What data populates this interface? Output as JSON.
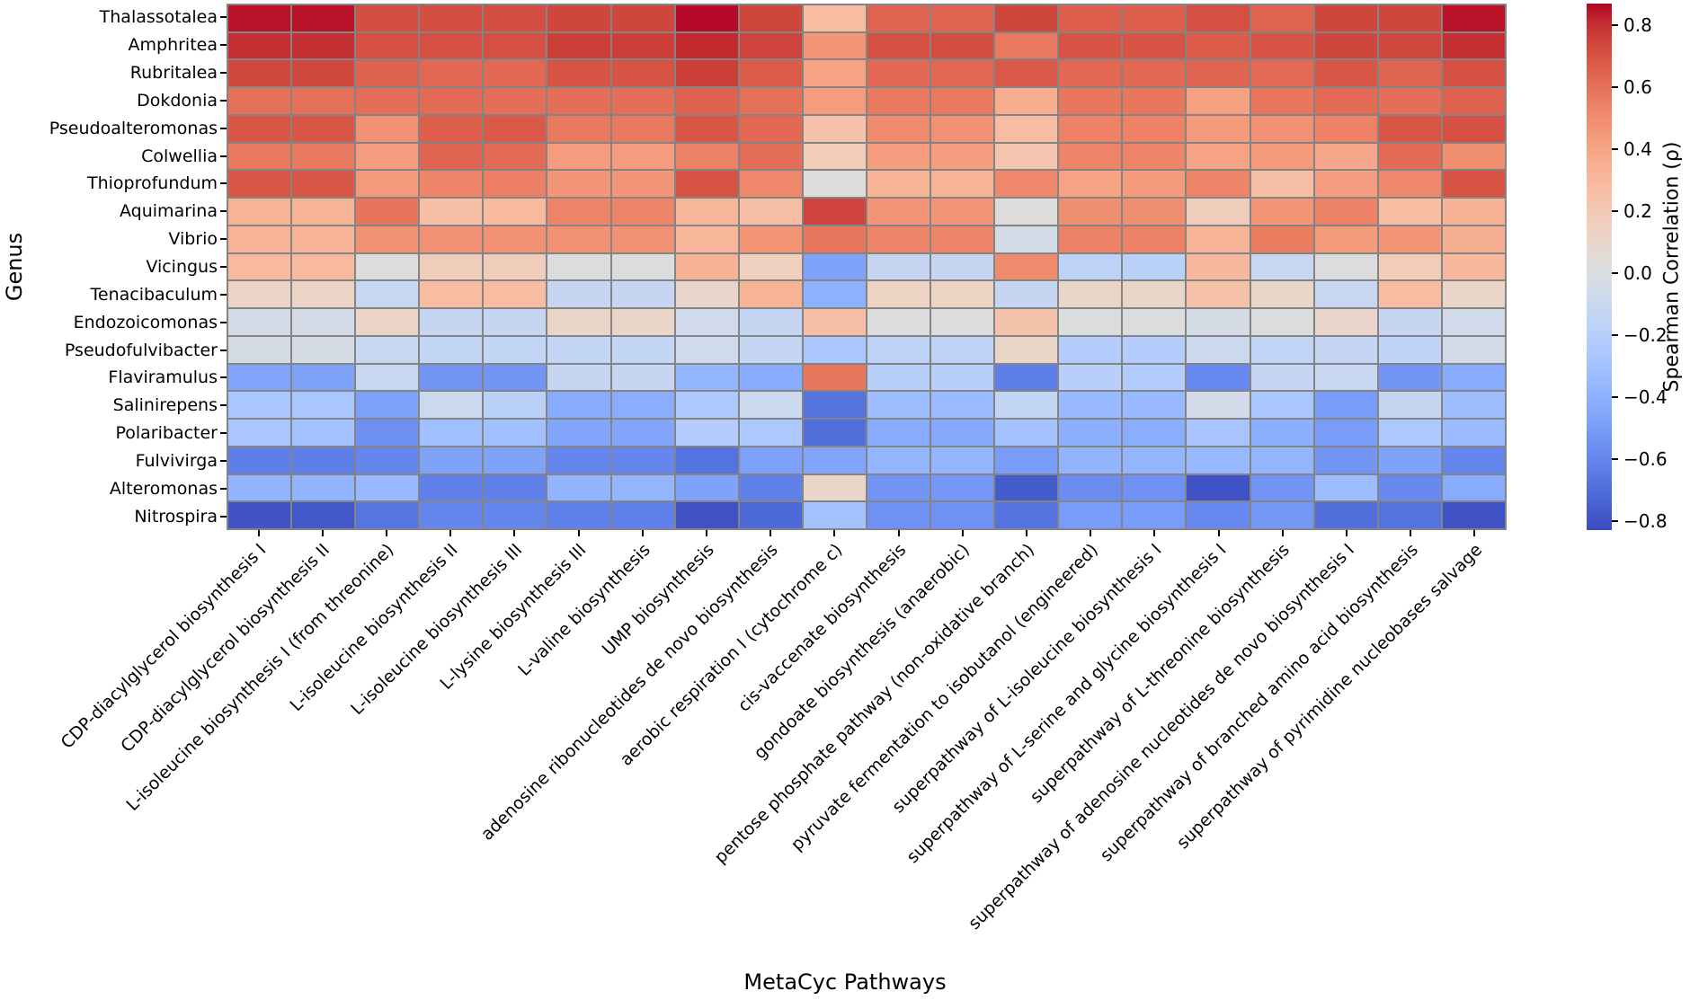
{
  "figure": {
    "xlabel": "MetaCyc Pathways",
    "ylabel": "Genus",
    "colorbar_label": "Spearman Correlation (ρ)"
  },
  "chart_data": {
    "type": "heatmap",
    "colormap": "coolwarm",
    "vmin": -0.83,
    "vmax": 0.87,
    "grid_line_color": "#848484",
    "xlabel": "MetaCyc Pathways",
    "ylabel": "Genus",
    "legend_position": "right-colorbar",
    "colorbar": {
      "label": "Spearman Correlation (ρ)",
      "tick_values": [
        0.8,
        0.6,
        0.4,
        0.2,
        0.0,
        -0.2,
        -0.4,
        -0.6,
        -0.8
      ],
      "tick_labels": [
        "0.8",
        "0.6",
        "0.4",
        "0.2",
        "0.0",
        "−0.2",
        "−0.4",
        "−0.6",
        "−0.8"
      ]
    },
    "rows": [
      "Thalassotalea",
      "Amphritea",
      "Rubritalea",
      "Dokdonia",
      "Pseudoalteromonas",
      "Colwellia",
      "Thioprofundum",
      "Aquimarina",
      "Vibrio",
      "Vicingus",
      "Tenacibaculum",
      "Endozoicomonas",
      "Pseudofulvibacter",
      "Flaviramulus",
      "Salinirepens",
      "Polaribacter",
      "Fulvivirga",
      "Alteromonas",
      "Nitrospira"
    ],
    "columns": [
      "CDP-diacylglycerol biosynthesis I",
      "CDP-diacylglycerol biosynthesis II",
      "L-isoleucine biosynthesis I (from threonine)",
      "L-isoleucine biosynthesis II",
      "L-isoleucine biosynthesis III",
      "L-lysine biosynthesis III",
      "L-valine biosynthesis",
      "UMP biosynthesis",
      "adenosine ribonucleotides de novo biosynthesis",
      "aerobic respiration I (cytochrome c)",
      "cis-vaccenate biosynthesis",
      "gondoate biosynthesis (anaerobic)",
      "pentose phosphate pathway (non-oxidative branch)",
      "pyruvate fermentation to isobutanol (engineered)",
      "superpathway of L-isoleucine biosynthesis I",
      "superpathway of L-serine and glycine biosynthesis I",
      "superpathway of L-threonine biosynthesis",
      "superpathway of adenosine nucleotides de novo biosynthesis I",
      "superpathway of branched amino acid biosynthesis",
      "superpathway of pyrimidine nucleobases salvage"
    ],
    "values": [
      [
        0.85,
        0.85,
        0.72,
        0.72,
        0.72,
        0.74,
        0.74,
        0.86,
        0.74,
        0.28,
        0.64,
        0.64,
        0.74,
        0.66,
        0.66,
        0.71,
        0.64,
        0.74,
        0.74,
        0.85
      ],
      [
        0.8,
        0.8,
        0.71,
        0.71,
        0.71,
        0.76,
        0.76,
        0.81,
        0.75,
        0.46,
        0.71,
        0.72,
        0.57,
        0.7,
        0.7,
        0.67,
        0.7,
        0.74,
        0.73,
        0.8
      ],
      [
        0.73,
        0.73,
        0.65,
        0.63,
        0.63,
        0.7,
        0.7,
        0.76,
        0.67,
        0.4,
        0.63,
        0.63,
        0.68,
        0.63,
        0.63,
        0.64,
        0.62,
        0.69,
        0.64,
        0.71
      ],
      [
        0.6,
        0.6,
        0.61,
        0.62,
        0.61,
        0.61,
        0.61,
        0.65,
        0.6,
        0.43,
        0.57,
        0.57,
        0.36,
        0.58,
        0.58,
        0.42,
        0.58,
        0.62,
        0.61,
        0.65
      ],
      [
        0.69,
        0.69,
        0.48,
        0.66,
        0.68,
        0.57,
        0.57,
        0.69,
        0.63,
        0.24,
        0.51,
        0.48,
        0.28,
        0.54,
        0.54,
        0.44,
        0.48,
        0.54,
        0.69,
        0.71
      ],
      [
        0.57,
        0.57,
        0.43,
        0.64,
        0.62,
        0.43,
        0.43,
        0.54,
        0.61,
        0.18,
        0.43,
        0.43,
        0.23,
        0.53,
        0.53,
        0.4,
        0.45,
        0.38,
        0.62,
        0.49
      ],
      [
        0.69,
        0.69,
        0.45,
        0.53,
        0.55,
        0.46,
        0.46,
        0.7,
        0.52,
        0.02,
        0.33,
        0.33,
        0.52,
        0.41,
        0.44,
        0.53,
        0.27,
        0.43,
        0.52,
        0.7
      ],
      [
        0.33,
        0.33,
        0.59,
        0.27,
        0.29,
        0.53,
        0.53,
        0.31,
        0.27,
        0.75,
        0.46,
        0.46,
        0.02,
        0.49,
        0.49,
        0.17,
        0.46,
        0.54,
        0.28,
        0.34
      ],
      [
        0.33,
        0.33,
        0.48,
        0.48,
        0.48,
        0.48,
        0.48,
        0.31,
        0.47,
        0.58,
        0.53,
        0.53,
        -0.04,
        0.54,
        0.54,
        0.33,
        0.56,
        0.44,
        0.46,
        0.35
      ],
      [
        0.29,
        0.29,
        0.02,
        0.17,
        0.17,
        0.01,
        0.01,
        0.34,
        0.16,
        -0.47,
        -0.12,
        -0.12,
        0.51,
        -0.17,
        -0.18,
        0.3,
        -0.11,
        0.01,
        0.18,
        0.3
      ],
      [
        0.12,
        0.12,
        -0.11,
        0.28,
        0.28,
        -0.12,
        -0.12,
        0.1,
        0.33,
        -0.4,
        0.13,
        0.13,
        -0.12,
        0.11,
        0.11,
        0.25,
        0.11,
        -0.11,
        0.28,
        0.11
      ],
      [
        -0.04,
        -0.04,
        0.12,
        -0.12,
        -0.12,
        0.11,
        0.11,
        -0.06,
        -0.12,
        0.27,
        0.01,
        0.01,
        0.24,
        0.01,
        0.01,
        -0.03,
        0.01,
        0.1,
        -0.12,
        -0.06
      ],
      [
        -0.03,
        -0.03,
        -0.11,
        -0.14,
        -0.14,
        -0.14,
        -0.14,
        -0.07,
        -0.13,
        -0.26,
        -0.17,
        -0.17,
        0.11,
        -0.22,
        -0.22,
        -0.09,
        -0.15,
        -0.13,
        -0.16,
        -0.05
      ],
      [
        -0.46,
        -0.47,
        -0.11,
        -0.53,
        -0.53,
        -0.12,
        -0.12,
        -0.37,
        -0.43,
        0.58,
        -0.19,
        -0.19,
        -0.63,
        -0.19,
        -0.23,
        -0.59,
        -0.13,
        -0.11,
        -0.53,
        -0.43
      ],
      [
        -0.27,
        -0.27,
        -0.48,
        -0.09,
        -0.18,
        -0.43,
        -0.42,
        -0.25,
        -0.09,
        -0.68,
        -0.32,
        -0.34,
        -0.14,
        -0.35,
        -0.35,
        -0.05,
        -0.27,
        -0.5,
        -0.12,
        -0.33
      ],
      [
        -0.27,
        -0.3,
        -0.56,
        -0.31,
        -0.31,
        -0.46,
        -0.46,
        -0.22,
        -0.25,
        -0.7,
        -0.43,
        -0.44,
        -0.3,
        -0.41,
        -0.42,
        -0.28,
        -0.41,
        -0.5,
        -0.25,
        -0.34
      ],
      [
        -0.63,
        -0.63,
        -0.6,
        -0.47,
        -0.47,
        -0.6,
        -0.6,
        -0.68,
        -0.48,
        -0.46,
        -0.37,
        -0.37,
        -0.5,
        -0.38,
        -0.37,
        -0.36,
        -0.37,
        -0.53,
        -0.47,
        -0.6
      ],
      [
        -0.38,
        -0.38,
        -0.35,
        -0.62,
        -0.62,
        -0.38,
        -0.37,
        -0.47,
        -0.62,
        0.11,
        -0.53,
        -0.52,
        -0.77,
        -0.57,
        -0.55,
        -0.81,
        -0.53,
        -0.33,
        -0.59,
        -0.43
      ],
      [
        -0.8,
        -0.79,
        -0.67,
        -0.6,
        -0.6,
        -0.62,
        -0.62,
        -0.81,
        -0.72,
        -0.3,
        -0.55,
        -0.55,
        -0.68,
        -0.5,
        -0.5,
        -0.59,
        -0.52,
        -0.7,
        -0.68,
        -0.81
      ]
    ]
  }
}
